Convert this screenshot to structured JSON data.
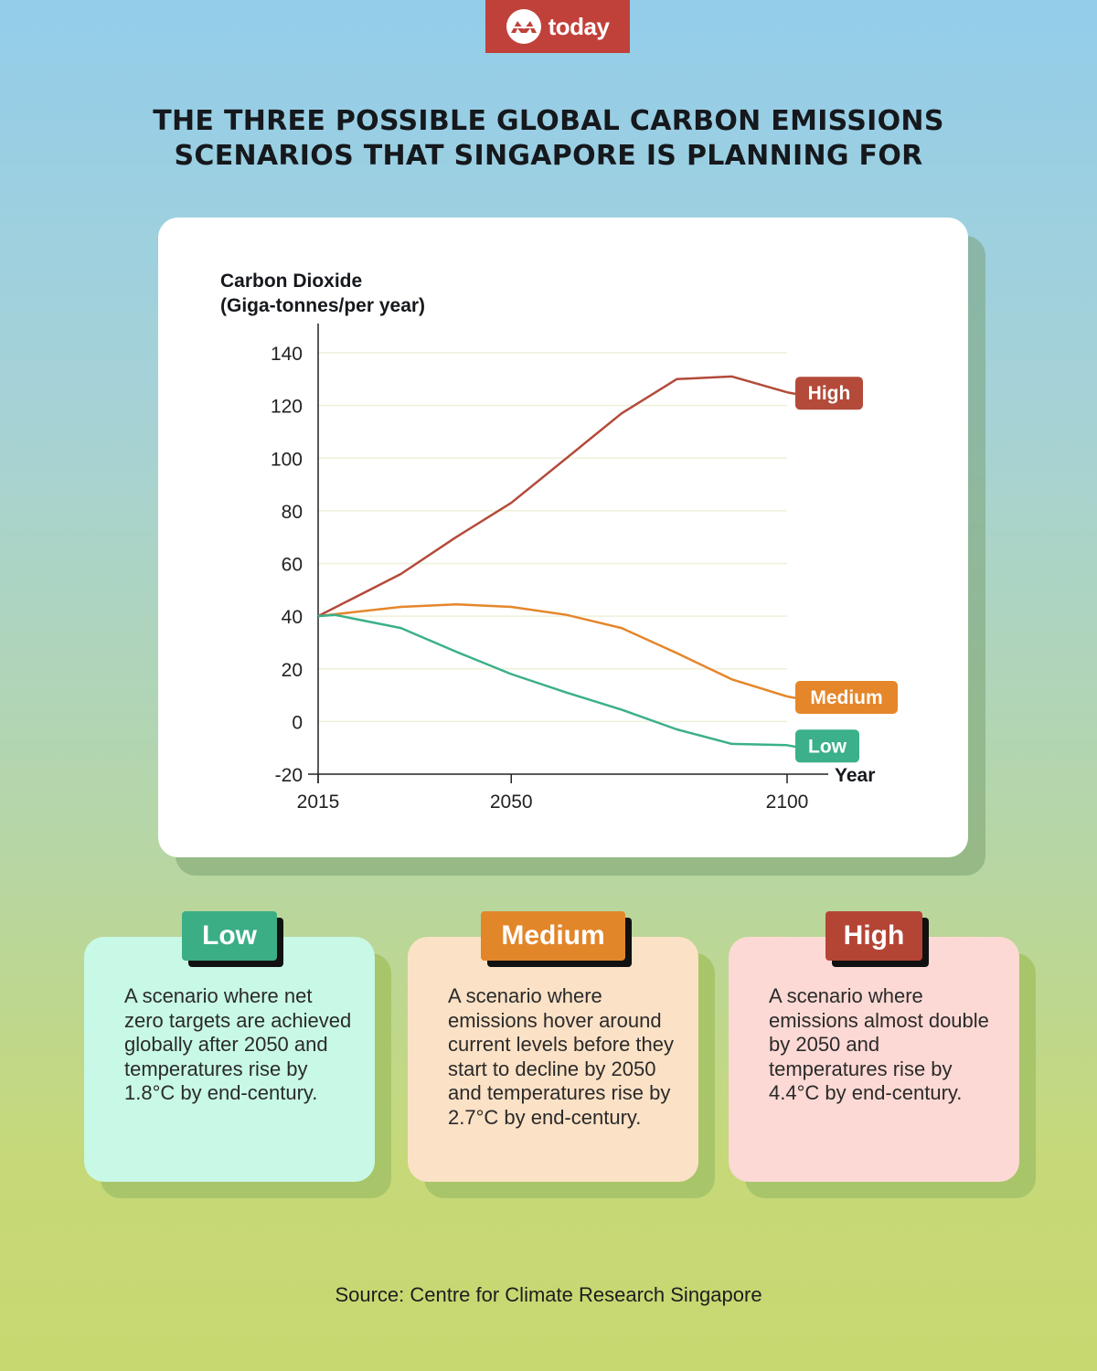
{
  "brand": {
    "name": "today",
    "icon": "mediacorp-mark-icon",
    "color": "#c0413a"
  },
  "title": {
    "line1": "THE THREE POSSIBLE GLOBAL CARBON EMISSIONS",
    "line2": "SCENARIOS THAT SINGAPORE IS PLANNING FOR"
  },
  "chart_data": {
    "type": "line",
    "title": "",
    "ylabel_line1": "Carbon Dioxide",
    "ylabel_line2": "(Giga-tonnes/per year)",
    "xlabel": "Year",
    "xlim": [
      2015,
      2100
    ],
    "ylim": [
      -20,
      140
    ],
    "x_ticks": [
      2015,
      2050,
      2100
    ],
    "x_tick_labels": [
      "2015",
      "2050",
      "2100"
    ],
    "y_ticks": [
      140,
      120,
      100,
      80,
      60,
      40,
      20,
      0,
      -20
    ],
    "y_tick_labels": [
      "140",
      "120",
      "100",
      "80",
      "60",
      "40",
      "20",
      "0",
      "-20"
    ],
    "grid": true,
    "legend": "inline-right",
    "series": [
      {
        "name": "High",
        "color": "#b34a3a",
        "x": [
          2015,
          2030,
          2040,
          2050,
          2060,
          2070,
          2080,
          2090,
          2100
        ],
        "values": [
          40,
          56,
          70,
          83,
          100,
          117,
          130,
          131,
          125
        ]
      },
      {
        "name": "Medium",
        "color": "#e5862a",
        "x": [
          2015,
          2030,
          2040,
          2050,
          2060,
          2070,
          2080,
          2090,
          2100
        ],
        "values": [
          40,
          43.5,
          44.5,
          43.5,
          40.5,
          35.5,
          26,
          16,
          9.5
        ]
      },
      {
        "name": "Low",
        "color": "#3bb08a",
        "x": [
          2015,
          2018,
          2030,
          2040,
          2050,
          2060,
          2070,
          2080,
          2090,
          2100
        ],
        "values": [
          40,
          40.5,
          35.5,
          26.5,
          18,
          11,
          4.5,
          -3,
          -8.5,
          -9
        ]
      }
    ]
  },
  "scenarios": [
    {
      "label": "Low",
      "badge_color": "#3bae86",
      "card_color": "#c8f9e6",
      "text": "A scenario where net zero targets are achieved globally after 2050 and temperatures rise by 1.8°C by end-century."
    },
    {
      "label": "Medium",
      "badge_color": "#e2862a",
      "card_color": "#fbe1c6",
      "text": "A scenario where emissions hover around current levels before they start to decline by 2050 and temperatures rise by 2.7°C by end-century."
    },
    {
      "label": "High",
      "badge_color": "#b44535",
      "card_color": "#fcd9d4",
      "text": "A scenario where emissions almost double by 2050 and temperatures rise by 4.4°C by end-century."
    }
  ],
  "source": "Source: Centre for Climate Research Singapore"
}
